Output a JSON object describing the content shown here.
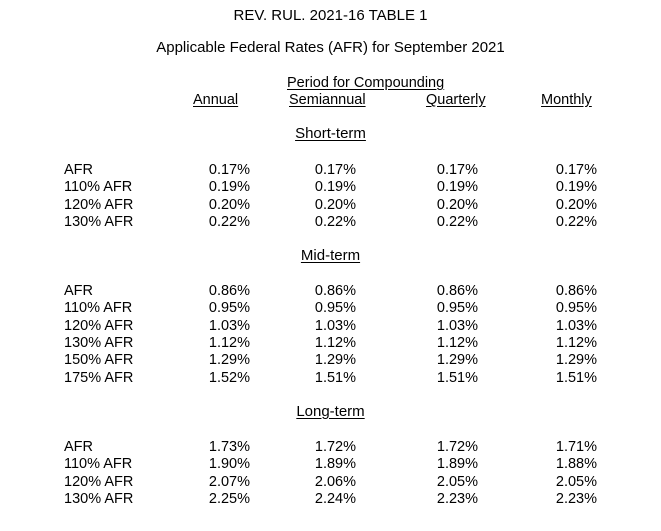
{
  "document": {
    "title": "REV. RUL. 2021-16 TABLE 1",
    "subtitle": "Applicable Federal Rates (AFR) for September 2021",
    "period_header": "Period for Compounding",
    "columns": [
      "Annual",
      "Semiannual",
      "Quarterly",
      "Monthly"
    ]
  },
  "sections": [
    {
      "name": "Short-term",
      "rows": [
        {
          "label": "AFR",
          "values": [
            "0.17%",
            "0.17%",
            "0.17%",
            "0.17%"
          ]
        },
        {
          "label": "110% AFR",
          "values": [
            "0.19%",
            "0.19%",
            "0.19%",
            "0.19%"
          ]
        },
        {
          "label": "120% AFR",
          "values": [
            "0.20%",
            "0.20%",
            "0.20%",
            "0.20%"
          ]
        },
        {
          "label": "130% AFR",
          "values": [
            "0.22%",
            "0.22%",
            "0.22%",
            "0.22%"
          ]
        }
      ]
    },
    {
      "name": "Mid-term",
      "rows": [
        {
          "label": "AFR",
          "values": [
            "0.86%",
            "0.86%",
            "0.86%",
            "0.86%"
          ]
        },
        {
          "label": "110% AFR",
          "values": [
            "0.95%",
            "0.95%",
            "0.95%",
            "0.95%"
          ]
        },
        {
          "label": "120% AFR",
          "values": [
            "1.03%",
            "1.03%",
            "1.03%",
            "1.03%"
          ]
        },
        {
          "label": "130% AFR",
          "values": [
            "1.12%",
            "1.12%",
            "1.12%",
            "1.12%"
          ]
        },
        {
          "label": "150% AFR",
          "values": [
            "1.29%",
            "1.29%",
            "1.29%",
            "1.29%"
          ]
        },
        {
          "label": "175% AFR",
          "values": [
            "1.52%",
            "1.51%",
            "1.51%",
            "1.51%"
          ]
        }
      ]
    },
    {
      "name": "Long-term",
      "rows": [
        {
          "label": "AFR",
          "values": [
            "1.73%",
            "1.72%",
            "1.72%",
            "1.71%"
          ]
        },
        {
          "label": "110% AFR",
          "values": [
            "1.90%",
            "1.89%",
            "1.89%",
            "1.88%"
          ]
        },
        {
          "label": "120% AFR",
          "values": [
            "2.07%",
            "2.06%",
            "2.05%",
            "2.05%"
          ]
        },
        {
          "label": "130% AFR",
          "values": [
            "2.25%",
            "2.24%",
            "2.23%",
            "2.23%"
          ]
        }
      ]
    }
  ]
}
